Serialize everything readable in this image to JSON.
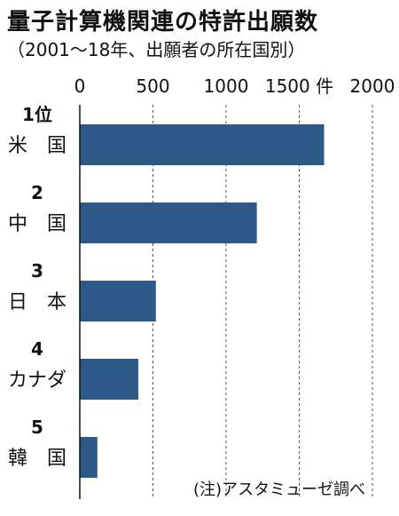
{
  "title": "量子計算機関連の特許出願数",
  "subtitle": "（2001～18年、出願者の所在国別）",
  "note": "(注)アスタミューゼ調べ",
  "chart_data": {
    "type": "bar",
    "orientation": "horizontal",
    "title": "量子計算機関連の特許出願数",
    "subtitle": "（2001～18年、出願者の所在国別）",
    "unit": "件",
    "xlim": [
      0,
      2000
    ],
    "xticks": [
      {
        "value": 0,
        "label": "0"
      },
      {
        "value": 500,
        "label": "500"
      },
      {
        "value": 1000,
        "label": "1000"
      },
      {
        "value": 1500,
        "label": "1500 件"
      },
      {
        "value": 2000,
        "label": "2000"
      }
    ],
    "grid": true,
    "categories": [
      "米　国",
      "中　国",
      "日　本",
      "カナダ",
      "韓　国"
    ],
    "ranks": [
      "1位",
      "2",
      "3",
      "4",
      "5"
    ],
    "values": [
      1670,
      1210,
      520,
      400,
      120
    ],
    "bar_color": "#2d5989",
    "annotation": "(注)アスタミューゼ調べ"
  }
}
